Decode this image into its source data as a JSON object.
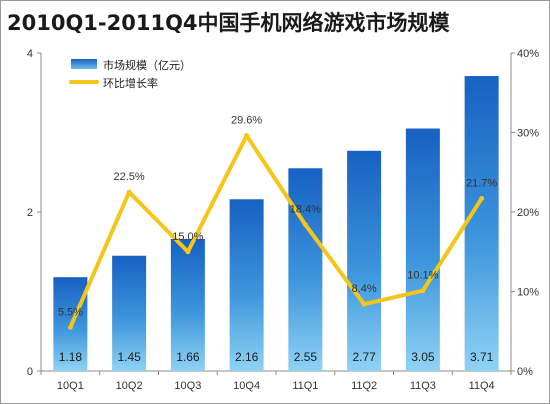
{
  "title": "2010Q1-2011Q4中国手机网络游戏市场规模",
  "chart_data": {
    "type": "bar+line",
    "categories": [
      "10Q1",
      "10Q2",
      "10Q3",
      "10Q4",
      "11Q1",
      "11Q2",
      "11Q3",
      "11Q4"
    ],
    "series": [
      {
        "name": "市场规模（亿元）",
        "type": "bar",
        "axis": "left",
        "values": [
          1.18,
          1.45,
          1.66,
          2.16,
          2.55,
          2.77,
          3.05,
          3.71
        ],
        "labels": [
          "1.18",
          "1.45",
          "1.66",
          "2.16",
          "2.55",
          "2.77",
          "3.05",
          "3.71"
        ],
        "color": "#1f6fc9"
      },
      {
        "name": "环比增长率",
        "type": "line",
        "axis": "right",
        "values": [
          5.5,
          22.5,
          15.0,
          29.6,
          18.4,
          8.4,
          10.1,
          21.7
        ],
        "labels": [
          "5.5%",
          "22.5%",
          "15.0%",
          "29.6%",
          "18.4%",
          "8.4%",
          "10.1%",
          "21.7%"
        ],
        "color": "#f5c518"
      }
    ],
    "y_left": {
      "ylim": [
        0,
        4
      ],
      "ticks": [
        "0",
        "2",
        "4"
      ]
    },
    "y_right": {
      "ylim": [
        0,
        40
      ],
      "ticks": [
        "0%",
        "10%",
        "20%",
        "30%",
        "40%"
      ]
    },
    "legend": [
      "市场规模（亿元）",
      "环比增长率"
    ],
    "legend_position": "top-left",
    "grid": false
  }
}
